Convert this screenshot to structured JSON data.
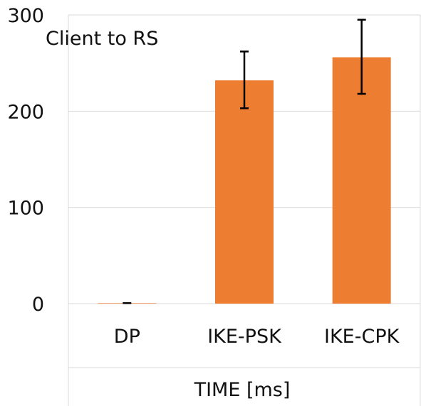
{
  "chart_data": {
    "type": "bar",
    "title": "Client to RS",
    "xlabel": "TIME [ms]",
    "ylabel": "",
    "categories": [
      "DP",
      "IKE-PSK",
      "IKE-CPK"
    ],
    "values": [
      0.5,
      232,
      256
    ],
    "error_low": [
      0.5,
      203,
      218
    ],
    "error_high": [
      0.5,
      262,
      295
    ],
    "ylim": [
      0,
      300
    ],
    "yticks": [
      "0",
      "100",
      "200",
      "300"
    ],
    "grid": true,
    "legend": "none",
    "colors": {
      "bar": "#ED7D31",
      "error_bar": "#000000",
      "grid": "#D9D9D9"
    }
  }
}
